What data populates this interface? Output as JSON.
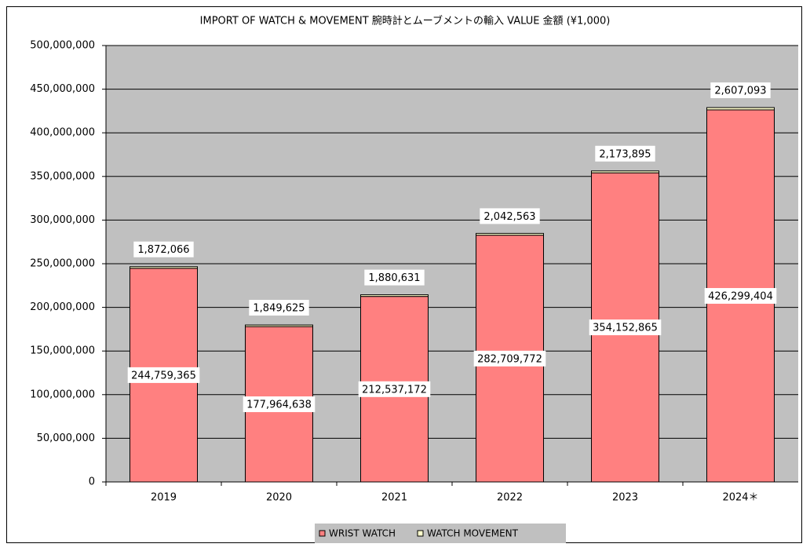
{
  "chart_data": {
    "type": "bar",
    "stacked": true,
    "title": "IMPORT OF WATCH & MOVEMENT 腕時計とムーブメントの輸入 VALUE 金額 (¥1,000)",
    "categories": [
      "2019",
      "2020",
      "2021",
      "2022",
      "2023",
      "2024＊"
    ],
    "series": [
      {
        "name": "WRIST WATCH",
        "color": "#ff8080",
        "values": [
          244759365,
          177964638,
          212537172,
          282709772,
          354152865,
          426299404
        ],
        "value_labels": [
          "244,759,365",
          "177,964,638",
          "212,537,172",
          "282,709,772",
          "354,152,865",
          "426,299,404"
        ]
      },
      {
        "name": "WATCH MOVEMENT",
        "color": "#ffffcc",
        "values": [
          1872066,
          1849625,
          1880631,
          2042563,
          2173895,
          2607093
        ],
        "value_labels": [
          "1,872,066",
          "1,849,625",
          "1,880,631",
          "2,042,563",
          "2,173,895",
          "2,607,093"
        ]
      }
    ],
    "ylim": [
      0,
      500000000
    ],
    "yticks": [
      0,
      {
        "value": 50000000,
        "label": "50,000,000"
      },
      {
        "value": 100000000,
        "label": "100,000,000"
      },
      {
        "value": 150000000,
        "label": "150,000,000"
      },
      {
        "value": 200000000,
        "label": "200,000,000"
      },
      {
        "value": 250000000,
        "label": "250,000,000"
      },
      {
        "value": 300000000,
        "label": "300,000,000"
      },
      {
        "value": 350000000,
        "label": "350,000,000"
      },
      {
        "value": 400000000,
        "label": "400,000,000"
      },
      {
        "value": 450000000,
        "label": "450,000,000"
      },
      {
        "value": 500000000,
        "label": "500,000,000"
      }
    ],
    "grid": true,
    "plot_background": "#c0c0c0",
    "legend": "bottom"
  }
}
